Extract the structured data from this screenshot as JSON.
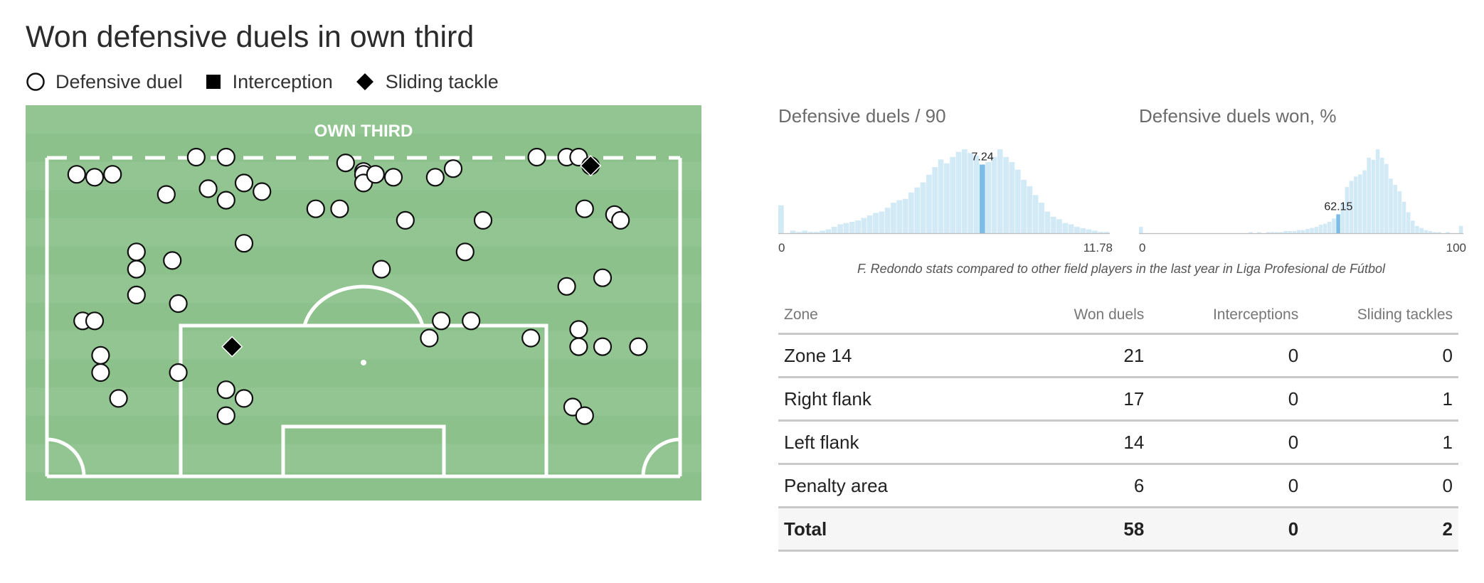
{
  "title": "Won defensive duels in own third",
  "legend": [
    {
      "label": "Defensive duel",
      "icon": "circle-icon"
    },
    {
      "label": "Interception",
      "icon": "square-icon"
    },
    {
      "label": "Sliding tackle",
      "icon": "diamond-icon"
    }
  ],
  "colors": {
    "pitch_light": "#93c593",
    "pitch_dark": "#8cc18c",
    "pitch_lines": "#ffffff",
    "hist_bar": "#d2e9f6",
    "hist_highlight": "#7bbde6"
  },
  "chart_data": [
    {
      "type": "scatter",
      "title": "Won defensive duels in own third",
      "pitch_label": "OWN THIRD",
      "xlim": [
        0,
        100
      ],
      "ylim": [
        0,
        100
      ],
      "series": [
        {
          "name": "Defensive duel",
          "marker": "circle",
          "points": [
            [
              8,
              6
            ],
            [
              22,
              0
            ],
            [
              47,
              2
            ],
            [
              50,
              5
            ],
            [
              65,
              4
            ],
            [
              84,
              0
            ],
            [
              86,
              0
            ],
            [
              88,
              3
            ],
            [
              5,
              7
            ],
            [
              17,
              13
            ],
            [
              24,
              11
            ],
            [
              27,
              15
            ],
            [
              30,
              9
            ],
            [
              33,
              12
            ],
            [
              42,
              18
            ],
            [
              50,
              6
            ],
            [
              50,
              9
            ],
            [
              52,
              6
            ],
            [
              55,
              7
            ],
            [
              46,
              18
            ],
            [
              62,
              7
            ],
            [
              87,
              18
            ],
            [
              92,
              20
            ],
            [
              93,
              22
            ],
            [
              57,
              22
            ],
            [
              12,
              33
            ],
            [
              12,
              39
            ],
            [
              18,
              36
            ],
            [
              30,
              30
            ],
            [
              53,
              39
            ],
            [
              70,
              22
            ],
            [
              67,
              33
            ],
            [
              90,
              42
            ],
            [
              84,
              45
            ],
            [
              3,
              57
            ],
            [
              5,
              57
            ],
            [
              12,
              48
            ],
            [
              19,
              51
            ],
            [
              63,
              57
            ],
            [
              68,
              57
            ],
            [
              61,
              63
            ],
            [
              86,
              60
            ],
            [
              78,
              63
            ],
            [
              86,
              66
            ],
            [
              90,
              66
            ],
            [
              96,
              66
            ],
            [
              6,
              69
            ],
            [
              6,
              75
            ],
            [
              19,
              75
            ],
            [
              9,
              84
            ],
            [
              27,
              81
            ],
            [
              30,
              84
            ],
            [
              27,
              90
            ],
            [
              85,
              87
            ],
            [
              87,
              90
            ],
            [
              27,
              0
            ],
            [
              2,
              6
            ],
            [
              79,
              0
            ]
          ]
        },
        {
          "name": "Sliding tackle",
          "marker": "diamond",
          "points": [
            [
              88,
              3
            ],
            [
              28,
              66
            ]
          ]
        }
      ]
    },
    {
      "type": "bar",
      "title": "Defensive duels / 90",
      "xlim": [
        0,
        11.78
      ],
      "tick_labels": [
        "0",
        "11.78"
      ],
      "highlight_value": 7.24,
      "highlight_label": "7.24",
      "values": [
        22,
        0,
        2,
        1,
        2,
        1,
        1,
        2,
        3,
        5,
        7,
        8,
        9,
        10,
        12,
        14,
        16,
        17,
        20,
        24,
        26,
        27,
        32,
        36,
        40,
        46,
        52,
        58,
        55,
        60,
        64,
        66,
        63,
        61,
        54,
        56,
        60,
        66,
        60,
        56,
        50,
        42,
        37,
        30,
        24,
        17,
        13,
        11,
        8,
        7,
        5,
        4,
        3,
        2,
        1,
        1
      ]
    },
    {
      "type": "bar",
      "title": "Defensive duels won, %",
      "xlim": [
        0,
        100
      ],
      "tick_labels": [
        "0",
        "100"
      ],
      "highlight_value": 62.15,
      "highlight_label": "62.15",
      "values": [
        6,
        0,
        0,
        0,
        0,
        0,
        0,
        0,
        0,
        0,
        0,
        0,
        0,
        0,
        0,
        0,
        0,
        0,
        0,
        0,
        0,
        0,
        0,
        0,
        0,
        1,
        0,
        1,
        0,
        1,
        1,
        1,
        1,
        2,
        2,
        2,
        3,
        3,
        4,
        5,
        6,
        8,
        9,
        11,
        14,
        18,
        28,
        44,
        50,
        54,
        56,
        60,
        72,
        70,
        80,
        72,
        66,
        52,
        46,
        40,
        30,
        20,
        12,
        7,
        5,
        3,
        2,
        1,
        1,
        0,
        1,
        0,
        0,
        7
      ]
    },
    {
      "type": "table",
      "columns": [
        "Zone",
        "Won duels",
        "Interceptions",
        "Sliding tackles"
      ],
      "rows": [
        {
          "zone": "Zone 14",
          "won": 21,
          "interceptions": 0,
          "sliding": 0
        },
        {
          "zone": "Right flank",
          "won": 17,
          "interceptions": 0,
          "sliding": 1
        },
        {
          "zone": "Left flank",
          "won": 14,
          "interceptions": 0,
          "sliding": 1
        },
        {
          "zone": "Penalty area",
          "won": 6,
          "interceptions": 0,
          "sliding": 0
        }
      ],
      "total": {
        "zone": "Total",
        "won": 58,
        "interceptions": 0,
        "sliding": 2
      }
    }
  ],
  "caption": "F. Redondo stats compared to other field players in the last year in Liga Profesional de Fútbol"
}
